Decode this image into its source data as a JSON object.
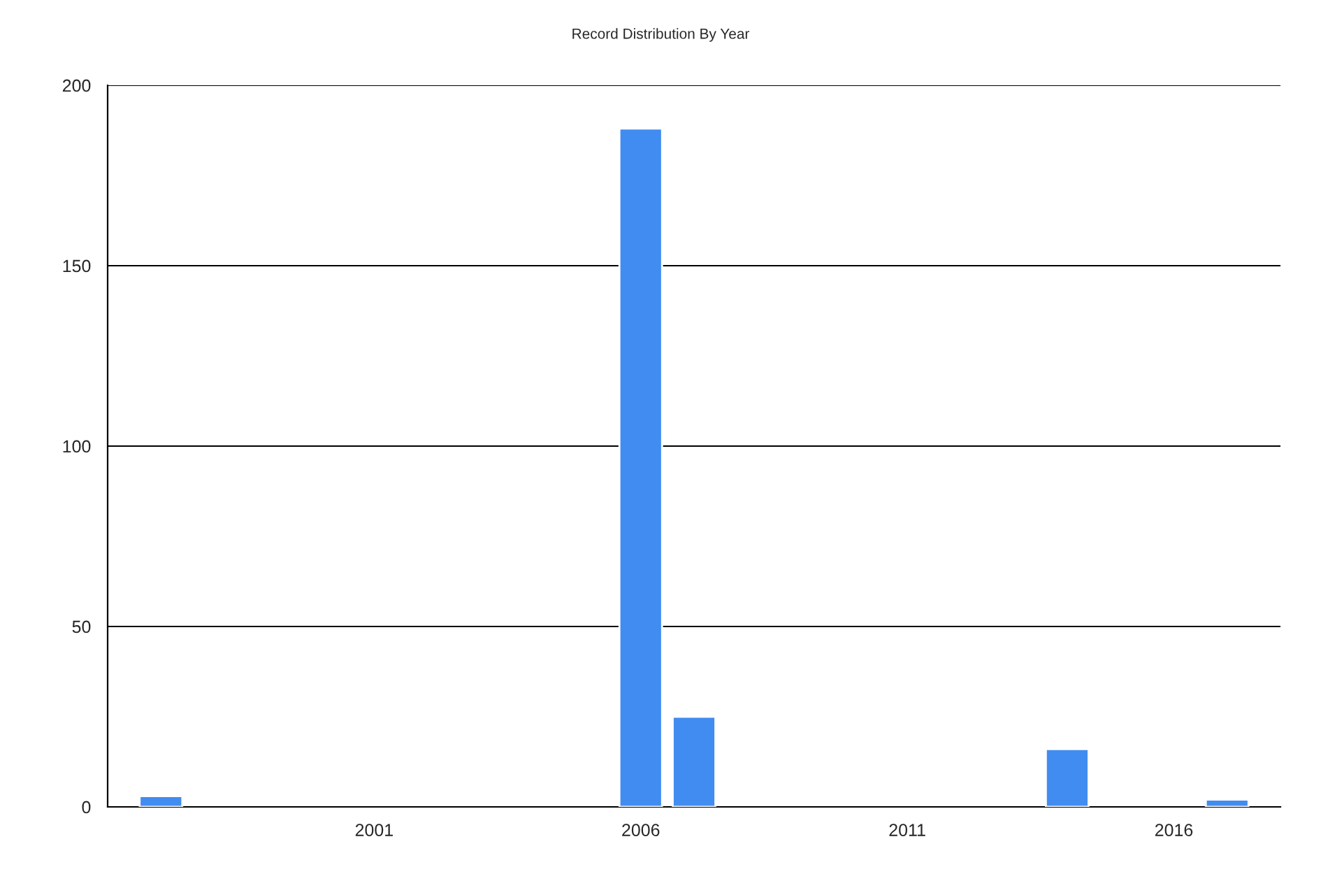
{
  "chart_data": {
    "type": "bar",
    "title": "Record Distribution By Year",
    "x": [
      1997,
      2006,
      2007,
      2014,
      2017
    ],
    "values": [
      3,
      188,
      25,
      16,
      2
    ],
    "color": "#418cf0",
    "xlim": [
      1996,
      2018
    ],
    "xticks": [
      2001,
      2006,
      2011,
      2016
    ],
    "ylim": [
      0,
      200
    ],
    "yticks": [
      0,
      50,
      100,
      150,
      200
    ],
    "grid": "y",
    "legend": false
  }
}
